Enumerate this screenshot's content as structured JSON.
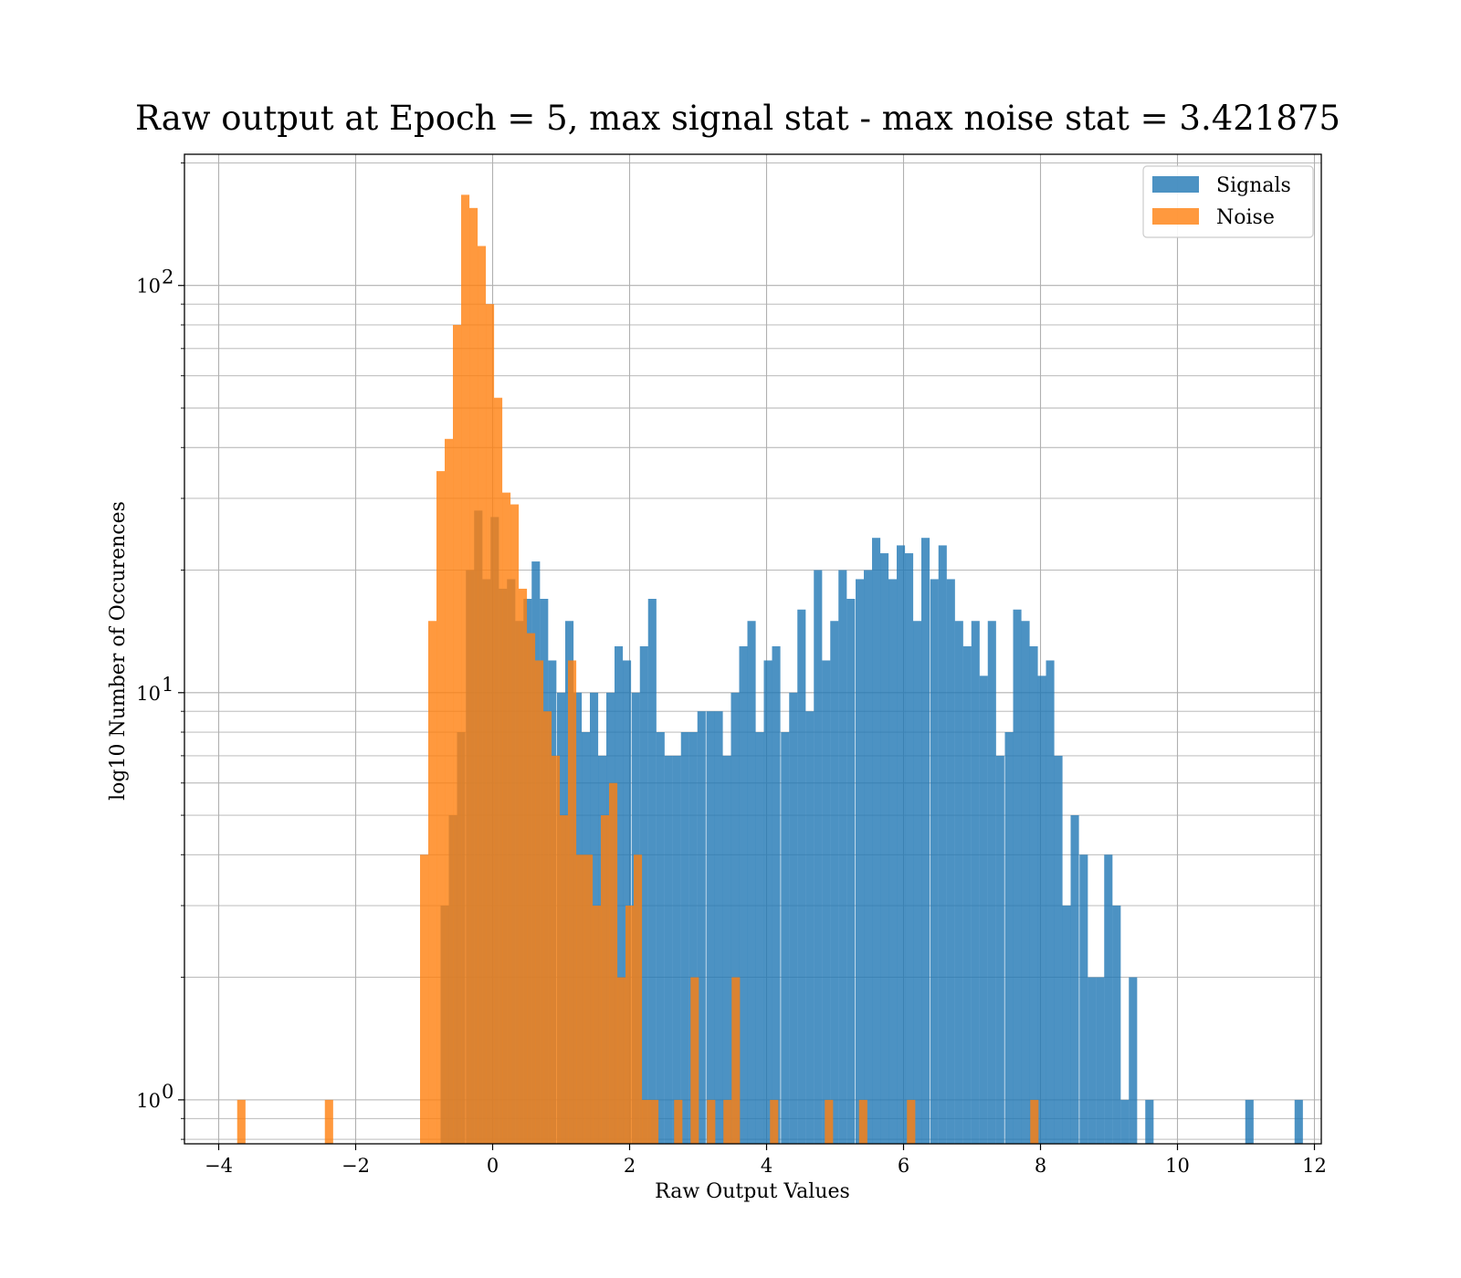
{
  "chart_data": {
    "type": "histogram",
    "title": "Raw output at Epoch = 5, max signal stat - max noise stat = 3.421875",
    "xlabel": "Raw Output Values",
    "ylabel": "log10 Number of Occurences",
    "xlim": [
      -4.5,
      12.1
    ],
    "ylim": [
      0.78,
      210
    ],
    "yscale": "log",
    "grid": true,
    "legend_position": "top-right",
    "xticks": [
      -4,
      -2,
      0,
      2,
      4,
      6,
      8,
      10,
      12
    ],
    "xtick_labels": [
      "−4",
      "−2",
      "0",
      "2",
      "4",
      "6",
      "8",
      "10",
      "12"
    ],
    "yticks": [
      1,
      10,
      100
    ],
    "ytick_bases": [
      "10",
      "10",
      "10"
    ],
    "ytick_exponents": [
      "0",
      "1",
      "2"
    ],
    "series": [
      {
        "name": "Signals",
        "color": "#1f77b4",
        "opacity": 0.8,
        "bin_width": 0.1213,
        "bins": [
          [
            -0.76,
            3
          ],
          [
            -0.64,
            5
          ],
          [
            -0.52,
            8
          ],
          [
            -0.39,
            20
          ],
          [
            -0.27,
            28
          ],
          [
            -0.15,
            19
          ],
          [
            -0.03,
            27
          ],
          [
            0.09,
            18
          ],
          [
            0.21,
            19
          ],
          [
            0.33,
            15
          ],
          [
            0.45,
            17
          ],
          [
            0.57,
            21
          ],
          [
            0.69,
            17
          ],
          [
            0.81,
            12
          ],
          [
            0.94,
            10
          ],
          [
            1.06,
            15
          ],
          [
            1.18,
            10
          ],
          [
            1.3,
            8
          ],
          [
            1.42,
            10
          ],
          [
            1.54,
            7
          ],
          [
            1.66,
            10
          ],
          [
            1.78,
            13
          ],
          [
            1.9,
            12
          ],
          [
            2.03,
            10
          ],
          [
            2.15,
            13
          ],
          [
            2.27,
            17
          ],
          [
            2.39,
            8
          ],
          [
            2.51,
            7
          ],
          [
            2.63,
            7
          ],
          [
            2.75,
            8
          ],
          [
            2.87,
            8
          ],
          [
            2.99,
            9
          ],
          [
            3.12,
            9
          ],
          [
            3.24,
            9
          ],
          [
            3.36,
            7
          ],
          [
            3.48,
            10
          ],
          [
            3.6,
            13
          ],
          [
            3.72,
            15
          ],
          [
            3.84,
            8
          ],
          [
            3.96,
            12
          ],
          [
            4.08,
            13
          ],
          [
            4.21,
            8
          ],
          [
            4.33,
            10
          ],
          [
            4.45,
            16
          ],
          [
            4.57,
            9
          ],
          [
            4.69,
            20
          ],
          [
            4.81,
            12
          ],
          [
            4.93,
            15
          ],
          [
            5.05,
            20
          ],
          [
            5.17,
            17
          ],
          [
            5.3,
            19
          ],
          [
            5.42,
            20
          ],
          [
            5.54,
            24
          ],
          [
            5.66,
            22
          ],
          [
            5.78,
            19
          ],
          [
            5.9,
            23
          ],
          [
            6.02,
            22
          ],
          [
            6.14,
            15
          ],
          [
            6.26,
            24
          ],
          [
            6.39,
            19
          ],
          [
            6.51,
            23
          ],
          [
            6.63,
            19
          ],
          [
            6.75,
            15
          ],
          [
            6.87,
            13
          ],
          [
            6.99,
            15
          ],
          [
            7.11,
            11
          ],
          [
            7.23,
            15
          ],
          [
            7.35,
            7
          ],
          [
            7.48,
            8
          ],
          [
            7.6,
            16
          ],
          [
            7.72,
            15
          ],
          [
            7.84,
            13
          ],
          [
            7.96,
            11
          ],
          [
            8.08,
            12
          ],
          [
            8.2,
            7
          ],
          [
            8.32,
            3
          ],
          [
            8.44,
            5
          ],
          [
            8.57,
            4
          ],
          [
            8.69,
            2
          ],
          [
            8.81,
            2
          ],
          [
            8.93,
            4
          ],
          [
            9.05,
            3
          ],
          [
            9.17,
            1
          ],
          [
            9.29,
            2
          ],
          [
            9.53,
            1
          ],
          [
            10.99,
            1
          ],
          [
            11.71,
            1
          ]
        ]
      },
      {
        "name": "Noise",
        "color": "#ff7f0e",
        "opacity": 0.8,
        "bin_width": 0.1213,
        "bins": [
          [
            -3.73,
            1
          ],
          [
            -2.45,
            1
          ],
          [
            -1.06,
            4
          ],
          [
            -0.94,
            15
          ],
          [
            -0.82,
            35
          ],
          [
            -0.7,
            42
          ],
          [
            -0.58,
            80
          ],
          [
            -0.46,
            167
          ],
          [
            -0.34,
            155
          ],
          [
            -0.22,
            125
          ],
          [
            -0.1,
            90
          ],
          [
            0.02,
            53
          ],
          [
            0.14,
            31
          ],
          [
            0.26,
            29
          ],
          [
            0.38,
            18
          ],
          [
            0.5,
            14
          ],
          [
            0.62,
            12
          ],
          [
            0.74,
            9
          ],
          [
            0.86,
            7
          ],
          [
            0.98,
            5
          ],
          [
            1.1,
            12
          ],
          [
            1.22,
            4
          ],
          [
            1.34,
            4
          ],
          [
            1.46,
            3
          ],
          [
            1.58,
            5
          ],
          [
            1.7,
            6
          ],
          [
            1.82,
            2
          ],
          [
            1.94,
            3
          ],
          [
            2.06,
            4
          ],
          [
            2.18,
            1
          ],
          [
            2.3,
            1
          ],
          [
            2.65,
            1
          ],
          [
            2.89,
            2
          ],
          [
            3.13,
            1
          ],
          [
            3.37,
            1
          ],
          [
            3.49,
            2
          ],
          [
            4.05,
            1
          ],
          [
            4.85,
            1
          ],
          [
            5.35,
            1
          ],
          [
            6.05,
            1
          ],
          [
            7.85,
            1
          ]
        ]
      }
    ]
  }
}
